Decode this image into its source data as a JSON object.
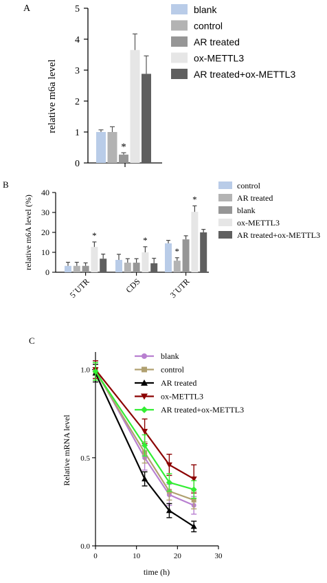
{
  "chart_data": [
    {
      "panel_label": "A",
      "type": "bar",
      "title": "",
      "xlabel": "",
      "ylabel": "relative m6a level",
      "ylim": [
        0,
        5
      ],
      "yticks": [
        "0",
        "1",
        "2",
        "3",
        "4",
        "5"
      ],
      "legend_position": "right",
      "series": [
        {
          "name": "blank",
          "color": "#b9cce8",
          "values": [
            1.0
          ],
          "errors": [
            0.07
          ]
        },
        {
          "name": "control",
          "color": "#b3b3b3",
          "values": [
            1.0
          ],
          "errors": [
            0.17
          ]
        },
        {
          "name": "AR treated",
          "color": "#969696",
          "values": [
            0.27
          ],
          "errors": [
            0.06
          ],
          "annotations": [
            "*"
          ]
        },
        {
          "name": "ox-METTL3",
          "color": "#e6e6e6",
          "values": [
            3.65
          ],
          "errors": [
            0.52
          ]
        },
        {
          "name": "AR treated+ox-METTL3",
          "color": "#5f5f5f",
          "values": [
            2.88
          ],
          "errors": [
            0.58
          ]
        }
      ]
    },
    {
      "panel_label": "B",
      "type": "bar",
      "title": "",
      "xlabel": "",
      "ylabel": "relative m6A level (%)",
      "ylim": [
        0,
        40
      ],
      "yticks": [
        "0",
        "10",
        "20",
        "30",
        "40"
      ],
      "categories": [
        "5ˊUTR",
        "CDS",
        "3ˊUTR"
      ],
      "legend_position": "right",
      "series": [
        {
          "name": "control",
          "color": "#b9cce8",
          "values": [
            3.2,
            6.2,
            14.5
          ],
          "errors": [
            1.8,
            2.8,
            1.5
          ],
          "annotations": [
            "",
            "",
            ""
          ]
        },
        {
          "name": "AR treated",
          "color": "#b3b3b3",
          "values": [
            3.2,
            4.8,
            5.8
          ],
          "errors": [
            1.8,
            2.0,
            1.5
          ],
          "annotations": [
            "",
            "",
            "*"
          ]
        },
        {
          "name": "blank",
          "color": "#969696",
          "values": [
            3.2,
            4.8,
            16.5
          ],
          "errors": [
            1.5,
            2.0,
            1.8
          ],
          "annotations": [
            "",
            "",
            ""
          ]
        },
        {
          "name": "ox-METTL3",
          "color": "#e6e6e6",
          "values": [
            12.7,
            10.0,
            30.3
          ],
          "errors": [
            2.5,
            2.8,
            3.0
          ],
          "annotations": [
            "*",
            "*",
            "*"
          ]
        },
        {
          "name": "AR treated+ox-METTL3",
          "color": "#5f5f5f",
          "values": [
            6.8,
            4.5,
            20.0
          ],
          "errors": [
            2.3,
            2.5,
            1.5
          ],
          "annotations": [
            "",
            "",
            ""
          ]
        }
      ]
    },
    {
      "panel_label": "C",
      "type": "line",
      "title": "",
      "xlabel": "time (h)",
      "ylabel": "Relative mRNA level",
      "xlim": [
        0,
        30
      ],
      "ylim": [
        0,
        1.1
      ],
      "xticks": [
        "0",
        "10",
        "20",
        "30"
      ],
      "yticks": [
        "0.0",
        "0.5",
        "1.0"
      ],
      "x": [
        0,
        12,
        18,
        24
      ],
      "legend_position": "top-right",
      "series": [
        {
          "name": "blank",
          "color": "#b87fd0",
          "marker": "circle",
          "values": [
            1.0,
            0.5,
            0.29,
            0.23
          ],
          "errors": [
            0.05,
            0.07,
            0.06,
            0.05
          ]
        },
        {
          "name": "control",
          "color": "#b0a070",
          "marker": "square",
          "values": [
            0.99,
            0.53,
            0.31,
            0.26
          ],
          "errors": [
            0.05,
            0.06,
            0.05,
            0.05
          ]
        },
        {
          "name": "AR treated",
          "color": "#000000",
          "marker": "triangle",
          "values": [
            0.98,
            0.38,
            0.2,
            0.11
          ],
          "errors": [
            0.05,
            0.04,
            0.04,
            0.03
          ]
        },
        {
          "name": "ox-METTL3",
          "color": "#8b0000",
          "marker": "triangle-down",
          "values": [
            1.0,
            0.65,
            0.46,
            0.38
          ],
          "errors": [
            0.05,
            0.07,
            0.06,
            0.08
          ]
        },
        {
          "name": "AR treated+ox-METTL3",
          "color": "#33ee33",
          "marker": "diamond",
          "values": [
            0.99,
            0.57,
            0.36,
            0.32
          ],
          "errors": [
            0.05,
            0.06,
            0.05,
            0.05
          ]
        }
      ]
    }
  ]
}
